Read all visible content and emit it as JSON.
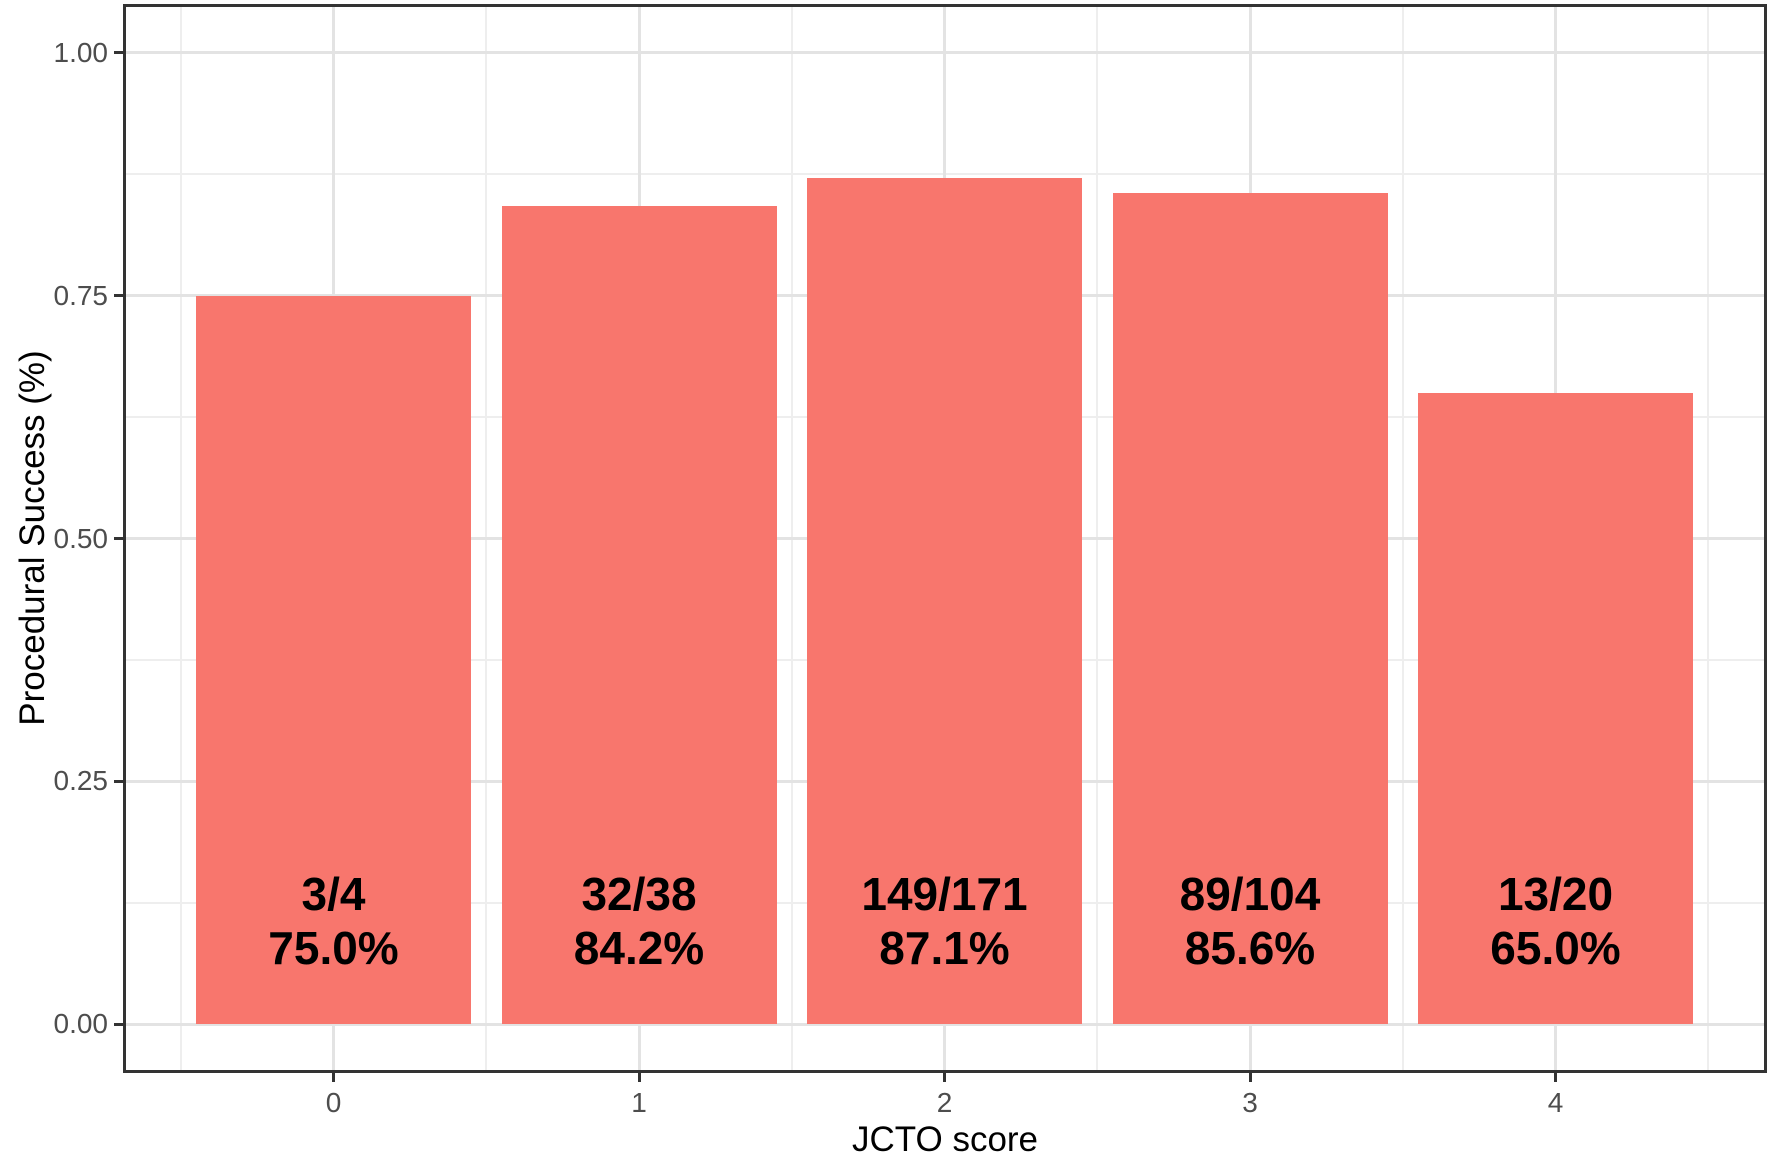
{
  "chart_data": {
    "type": "bar",
    "title": "",
    "xlabel": "JCTO score",
    "ylabel": "Procedural Success (%)",
    "categories": [
      "0",
      "1",
      "2",
      "3",
      "4"
    ],
    "values": [
      0.75,
      0.842,
      0.871,
      0.856,
      0.65
    ],
    "bar_labels": [
      [
        "3/4",
        "75.0%"
      ],
      [
        "32/38",
        "84.2%"
      ],
      [
        "149/171",
        "87.1%"
      ],
      [
        "89/104",
        "85.6%"
      ],
      [
        "13/20",
        "65.0%"
      ]
    ],
    "successes": [
      3,
      32,
      149,
      89,
      13
    ],
    "totals": [
      4,
      38,
      171,
      104,
      20
    ],
    "percent_labels": [
      "75.0%",
      "84.2%",
      "87.1%",
      "85.6%",
      "65.0%"
    ],
    "y_tick_labels": [
      "0.00",
      "0.25",
      "0.50",
      "0.75",
      "1.00"
    ],
    "y_tick_values": [
      0,
      0.25,
      0.5,
      0.75,
      1.0
    ],
    "y_minor_values": [
      0.125,
      0.375,
      0.625,
      0.875
    ],
    "ylim": [
      -0.05,
      1.05
    ],
    "bar_width_fraction": 0.9,
    "grid": "major+minor horizontal and vertical, light gray",
    "legend": "none"
  },
  "style": {
    "bar_color": "#F8766D",
    "panel_border_color": "#333333",
    "grid_major_color": "#e3e3e3",
    "grid_minor_color": "#eeeeee",
    "tick_label_color": "#4d4d4d",
    "axis_title_color": "#000000",
    "bar_label_color": "#000000",
    "background_color": "#ffffff"
  }
}
